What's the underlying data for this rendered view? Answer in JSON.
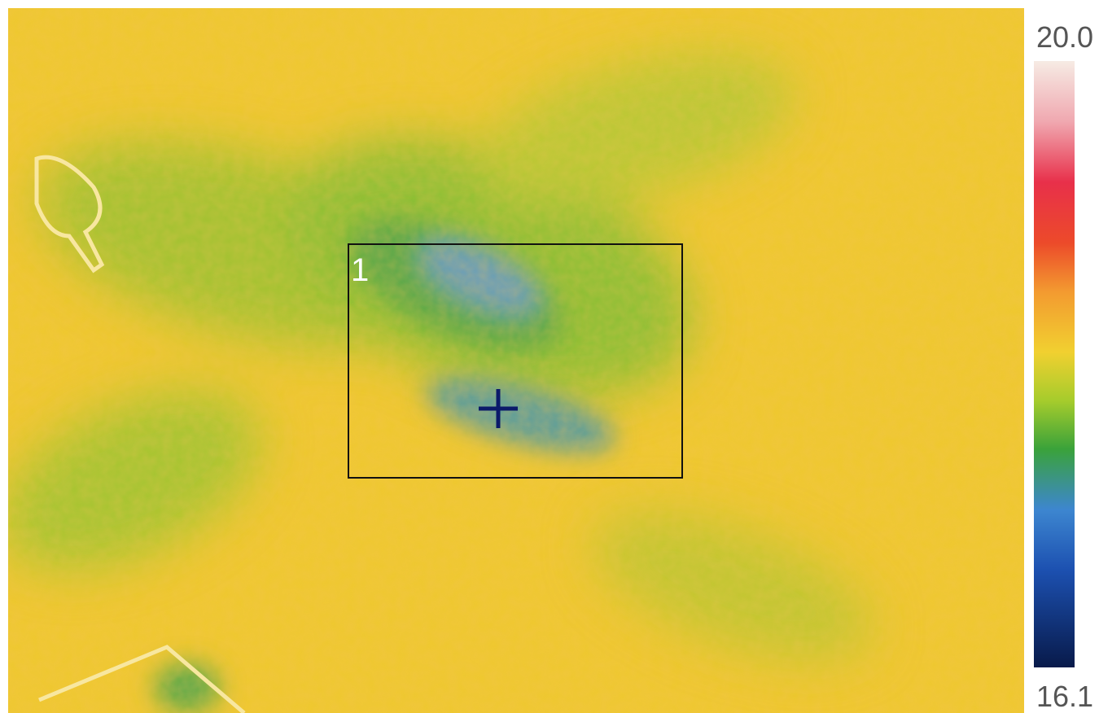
{
  "scale": {
    "max": "20.0",
    "min": "16.1"
  },
  "roi": {
    "label": "1"
  }
}
